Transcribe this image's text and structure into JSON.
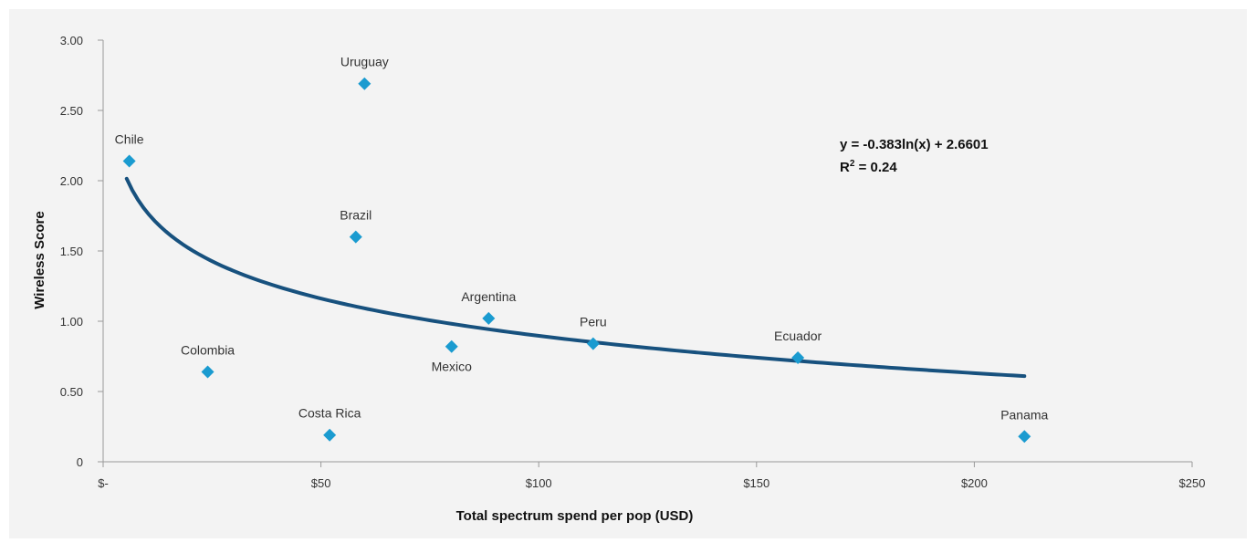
{
  "chart_data": {
    "type": "scatter",
    "xlabel": "Total spectrum spend per pop (USD)",
    "ylabel": "Wireless Score",
    "xlim": [
      0,
      250
    ],
    "ylim": [
      0,
      3
    ],
    "x_tick_values": [
      0,
      50,
      100,
      150,
      200,
      250
    ],
    "x_tick_labels": [
      "$-",
      "$50",
      "$100",
      "$150",
      "$200",
      "$250"
    ],
    "y_tick_values": [
      0,
      0.5,
      1,
      1.5,
      2,
      2.5,
      3
    ],
    "y_tick_labels": [
      "0",
      "0.50",
      "1.00",
      "1.50",
      "2.00",
      "2.50",
      "3.00"
    ],
    "points": [
      {
        "label": "Chile",
        "x": 6,
        "y": 2.14
      },
      {
        "label": "Uruguay",
        "x": 60,
        "y": 2.69
      },
      {
        "label": "Brazil",
        "x": 58,
        "y": 1.6
      },
      {
        "label": "Argentina",
        "x": 88.5,
        "y": 1.02
      },
      {
        "label": "Mexico",
        "x": 80,
        "y": 0.82
      },
      {
        "label": "Peru",
        "x": 112.5,
        "y": 0.84
      },
      {
        "label": "Ecuador",
        "x": 159.5,
        "y": 0.74
      },
      {
        "label": "Colombia",
        "x": 24,
        "y": 0.64
      },
      {
        "label": "Costa Rica",
        "x": 52,
        "y": 0.19
      },
      {
        "label": "Panama",
        "x": 211.5,
        "y": 0.18
      }
    ],
    "trendline": {
      "type": "logarithmic",
      "a": -0.383,
      "b": 2.6601,
      "x_range": [
        5.4,
        211.5
      ],
      "equation": "y = -0.383ln(x) + 2.6601",
      "r2_prefix": "R",
      "r2_sup": "2",
      "r2_suffix": " = 0.24"
    },
    "colors": {
      "marker": "#1a9bd0",
      "trendline": "#17517e",
      "background": "#f3f3f3",
      "axis": "#999999"
    }
  }
}
